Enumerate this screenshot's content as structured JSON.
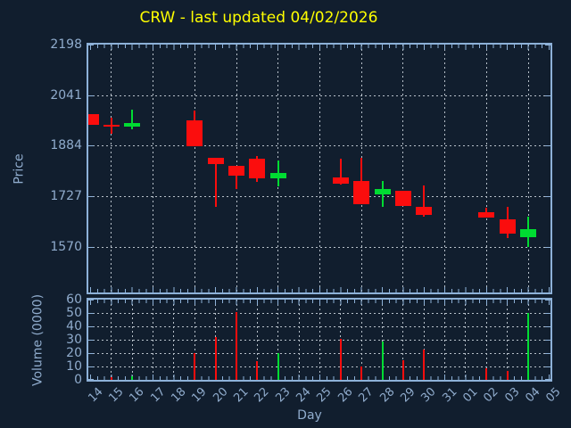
{
  "colors": {
    "background": "#111e2e",
    "frame": "#8db1d8",
    "tick_label": "#90accd",
    "grid": "#b8c1ca",
    "up_candle": "#00dc32",
    "down_candle": "#fb0d0d",
    "title": "#ffff00"
  },
  "chart_data": {
    "type": "candlestick",
    "title": "CRW - last updated 04/02/2026",
    "xlabel": "Day",
    "x_categories": [
      "14",
      "15",
      "16",
      "17",
      "18",
      "19",
      "20",
      "21",
      "22",
      "23",
      "24",
      "25",
      "26",
      "27",
      "28",
      "29",
      "30",
      "31",
      "01",
      "02",
      "03",
      "04",
      "05"
    ],
    "price_panel": {
      "ylabel": "Price",
      "yticks": [
        2198,
        2041,
        1884,
        1727,
        1570
      ],
      "ylim": [
        1428,
        2198
      ],
      "grid": "dotted, horizontal at yticks below top frame, vertical every 2nd day starting at 15"
    },
    "volume_panel": {
      "ylabel": "Volume (0000)",
      "yticks": [
        0,
        10,
        20,
        30,
        40,
        50,
        60
      ],
      "ylim": [
        0,
        60
      ],
      "grid": "dotted, horizontal every 10, vertical every day"
    },
    "candles": [
      {
        "day": "14",
        "open": 1982,
        "high": 1982,
        "low": 1950,
        "close": 1950
      },
      {
        "day": "15",
        "open": 1950,
        "high": 1972,
        "low": 1922,
        "close": 1944
      },
      {
        "day": "16",
        "open": 1942,
        "high": 1996,
        "low": 1935,
        "close": 1953
      },
      {
        "day": "19",
        "open": 1963,
        "high": 1993,
        "low": 1881,
        "close": 1881
      },
      {
        "day": "20",
        "open": 1847,
        "high": 1847,
        "low": 1694,
        "close": 1826
      },
      {
        "day": "21",
        "open": 1821,
        "high": 1821,
        "low": 1750,
        "close": 1792
      },
      {
        "day": "22",
        "open": 1843,
        "high": 1852,
        "low": 1771,
        "close": 1783
      },
      {
        "day": "23",
        "open": 1783,
        "high": 1839,
        "low": 1758,
        "close": 1799
      },
      {
        "day": "26",
        "open": 1784,
        "high": 1844,
        "low": 1762,
        "close": 1766
      },
      {
        "day": "27",
        "open": 1775,
        "high": 1847,
        "low": 1702,
        "close": 1702
      },
      {
        "day": "28",
        "open": 1733,
        "high": 1774,
        "low": 1694,
        "close": 1749
      },
      {
        "day": "29",
        "open": 1745,
        "high": 1745,
        "low": 1696,
        "close": 1696
      },
      {
        "day": "30",
        "open": 1693,
        "high": 1761,
        "low": 1663,
        "close": 1669
      },
      {
        "day": "02",
        "open": 1677,
        "high": 1691,
        "low": 1661,
        "close": 1661
      },
      {
        "day": "03",
        "open": 1655,
        "high": 1693,
        "low": 1597,
        "close": 1611
      },
      {
        "day": "04",
        "open": 1600,
        "high": 1664,
        "low": 1570,
        "close": 1626
      }
    ],
    "volumes": [
      {
        "day": "15",
        "value": 2
      },
      {
        "day": "16",
        "value": 3
      },
      {
        "day": "19",
        "value": 20
      },
      {
        "day": "20",
        "value": 32
      },
      {
        "day": "21",
        "value": 51
      },
      {
        "day": "22",
        "value": 14
      },
      {
        "day": "23",
        "value": 20
      },
      {
        "day": "26",
        "value": 31
      },
      {
        "day": "27",
        "value": 10
      },
      {
        "day": "28",
        "value": 29
      },
      {
        "day": "29",
        "value": 15
      },
      {
        "day": "30",
        "value": 23
      },
      {
        "day": "02",
        "value": 9
      },
      {
        "day": "03",
        "value": 7
      },
      {
        "day": "04",
        "value": 50
      }
    ]
  }
}
